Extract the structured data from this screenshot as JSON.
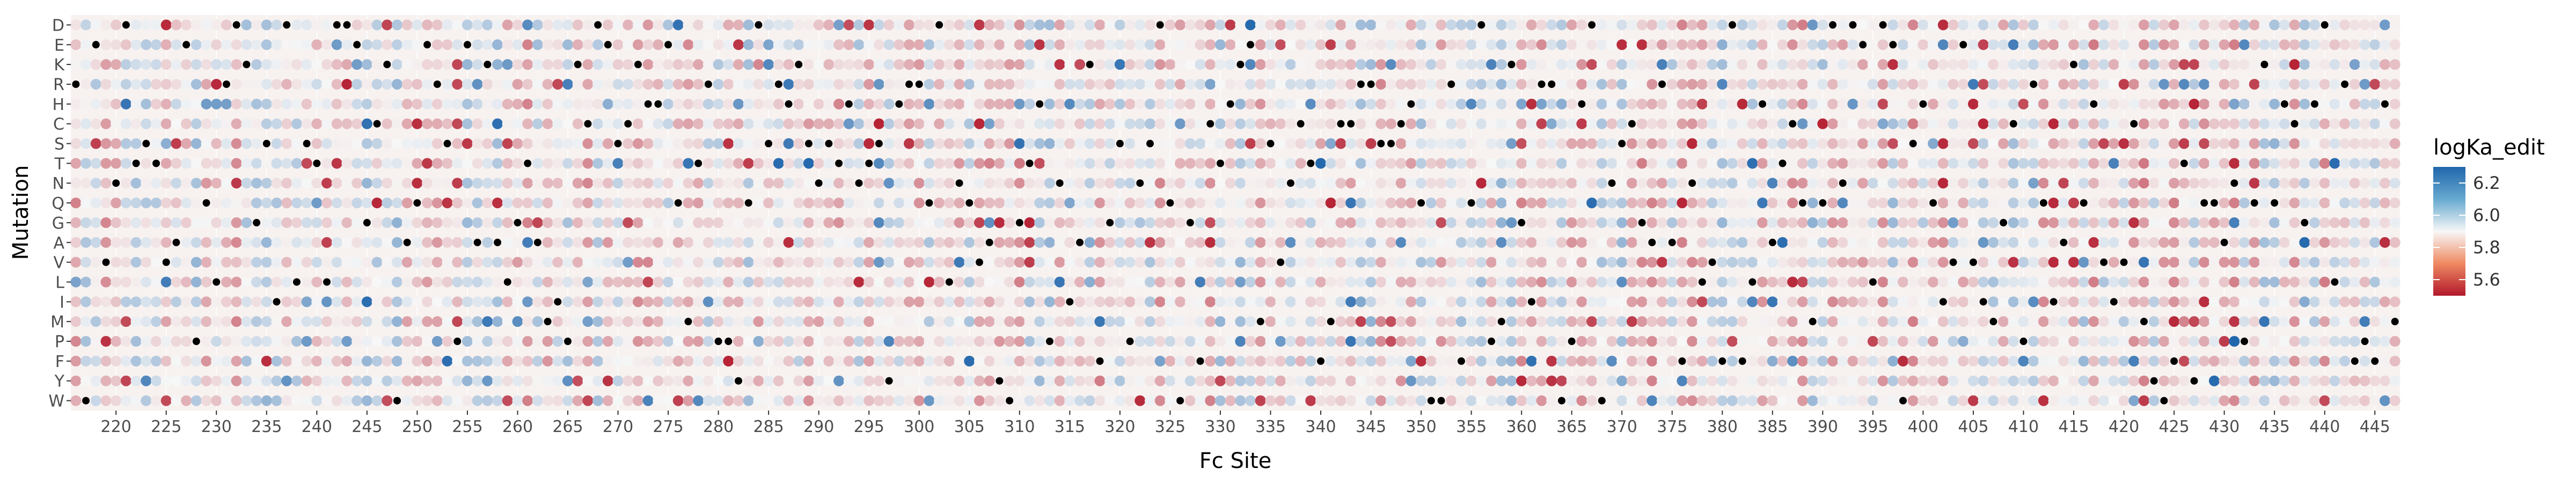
{
  "chart_data": {
    "type": "heatmap",
    "x_label": "Fc Site",
    "y_label": "Mutation",
    "x_range": [
      216,
      447
    ],
    "x_ticks": [
      220,
      225,
      230,
      235,
      240,
      245,
      250,
      255,
      260,
      265,
      270,
      275,
      280,
      285,
      290,
      295,
      300,
      305,
      310,
      315,
      320,
      325,
      330,
      335,
      340,
      345,
      350,
      355,
      360,
      365,
      370,
      375,
      380,
      385,
      390,
      395,
      400,
      405,
      410,
      415,
      420,
      425,
      430,
      435,
      440,
      445
    ],
    "y_categories": [
      "D",
      "E",
      "K",
      "R",
      "H",
      "C",
      "S",
      "T",
      "N",
      "Q",
      "G",
      "A",
      "V",
      "L",
      "I",
      "M",
      "P",
      "F",
      "Y",
      "W"
    ],
    "legend": {
      "title": "logKa_edit",
      "position": "right",
      "type": "colorbar",
      "range": [
        5.5,
        6.3
      ],
      "midpoint": 5.9,
      "ticks": [
        "6.2",
        "6.0",
        "5.8",
        "5.6"
      ],
      "tick_values": [
        6.2,
        6.0,
        5.8,
        5.6
      ],
      "colors": {
        "low": "#b2182b",
        "mid": "#f7f7f7",
        "high": "#2166ac"
      }
    },
    "wildtype_marker_color": "#000000",
    "wildtype_sequence_note": "black dots mark the wild-type residue at each site",
    "wildtype_residues": "RWEVNDTSTVAEPQLRDKGSIDLSTLDDEGCKWAQERSPEAKALGTAMIPKCDESCKHHEQMTRPPYQDSRHKSNSTHNTSYHRRQDLNQVAYWGTHPNIAKFGSPNSDQWGFCTHKEMSVNCTFMCCRRSSCHQWWRFQDPMKGIRRWPHDWNSCGARAFNLVFDFLHATCQMQDNDELDEWSHQIVEVIMGCPRQIAKQHVIVCMYWFTYQQANPQKQHCGHDLRFPFHMRHK",
    "seed": 2024
  }
}
